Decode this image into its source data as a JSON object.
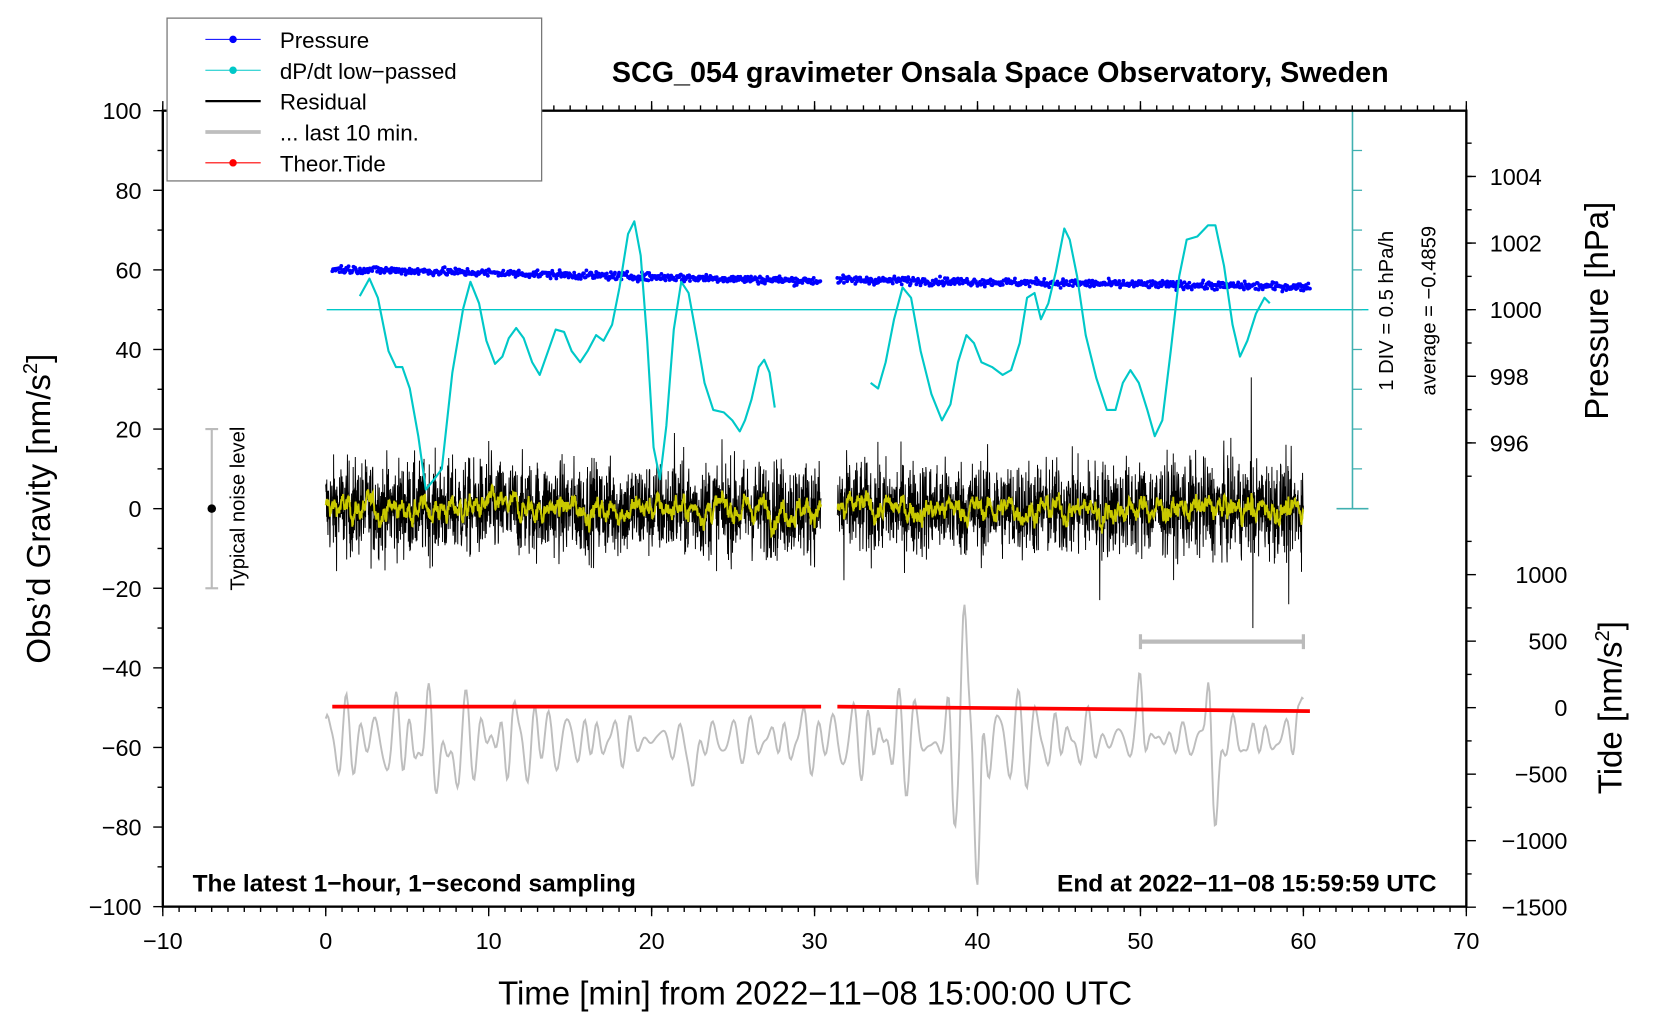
{
  "chart_data": {
    "type": "line",
    "title": "SCG_054 gravimeter Onsala Space Observatory, Sweden",
    "xlabel": "Time [min] from 2022−11−08 15:00:00 UTC",
    "ylabel": "Obs’d Gravity [nm/s",
    "ylabel_sup": "2",
    "ylabel_end": "]",
    "y2label": "Pressure [hPa]",
    "y3label": "Tide [nm/s",
    "y3label_sup": "2",
    "y3label_end": "]",
    "xlim": [
      -10,
      70
    ],
    "ylim": [
      -100,
      100
    ],
    "x_ticks": [
      "−10",
      "0",
      "10",
      "20",
      "30",
      "40",
      "50",
      "60",
      "70"
    ],
    "x_tick_values": [
      -10,
      0,
      10,
      20,
      30,
      40,
      50,
      60,
      70
    ],
    "y_ticks": [
      "100",
      "80",
      "60",
      "40",
      "20",
      "0",
      "−20",
      "−40",
      "−60",
      "−80",
      "−100"
    ],
    "y_tick_values": [
      100,
      80,
      60,
      40,
      20,
      0,
      -20,
      -40,
      -60,
      -80,
      -100
    ],
    "pressure_ticks": [
      "1004",
      "1002",
      "1000",
      "998",
      "996"
    ],
    "pressure_tick_values": [
      1004,
      1002,
      1000,
      998,
      996
    ],
    "tide_ticks": [
      "1000",
      "500",
      "0",
      "−500",
      "−1000",
      "−1500"
    ],
    "tide_tick_values": [
      1000,
      500,
      0,
      -500,
      -1000,
      -1500
    ],
    "legend": {
      "position": "top-left",
      "entries": [
        {
          "label": "Pressure",
          "color": "#0000ff",
          "marker": true
        },
        {
          "label": "dP/dt low−passed",
          "color": "#00c8c8",
          "marker": true
        },
        {
          "label": "Residual",
          "color": "#000000",
          "marker": false
        },
        {
          "label": "... last 10 min.",
          "color": "#bebebe",
          "marker": false
        },
        {
          "label": "Theor.Tide",
          "color": "#ff0000",
          "marker": true
        }
      ]
    },
    "annotations": {
      "bottom_left": "The latest 1−hour, 1−second sampling",
      "bottom_right": "End at 2022−11−08 15:59:59 UTC",
      "div_scale": "1 DIV = 0.5 hPa/h",
      "average": "average = −0.4859",
      "noise_level": "Typical noise level"
    },
    "colors": {
      "pressure": "#0000ff",
      "dpdt": "#00c8c8",
      "residual": "#000000",
      "smooth": "#c8c800",
      "last10": "#bebebe",
      "tide": "#ff0000",
      "scalebar": "#40b0b0"
    },
    "noise_level_range": [
      -20,
      20
    ],
    "last10_bar_minutes": [
      50,
      60
    ],
    "dpdt_div_hPa_per_h": 0.5,
    "dpdt_zero_pressure": 1000,
    "pressure_segments": [
      {
        "t": [
          0.4,
          30.4
        ],
        "p": [
          1001.22,
          1000.86
        ],
        "scatter": 0.12
      },
      {
        "t": [
          31.4,
          60.4
        ],
        "p": [
          1000.9,
          1000.68
        ],
        "scatter": 0.12
      }
    ],
    "tide_segments": [
      {
        "t": [
          0.4,
          30.4
        ],
        "v": [
          8,
          8
        ]
      },
      {
        "t": [
          31.4,
          60.4
        ],
        "v": [
          8,
          -26
        ]
      }
    ],
    "residual_segments": [
      {
        "t": [
          0.0,
          30.4
        ],
        "amplitude": 11
      },
      {
        "t": [
          31.4,
          60.0
        ],
        "amplitude": 11
      }
    ],
    "residual_spikes": [
      [
        56.8,
        33
      ],
      [
        56.9,
        -30
      ],
      [
        47.5,
        -23
      ],
      [
        59.1,
        -24
      ],
      [
        21.4,
        19
      ],
      [
        10.0,
        17
      ],
      [
        31.8,
        -18
      ]
    ],
    "last10_center": -58,
    "last10_amplitude": 11,
    "last10_events": [
      [
        39.2,
        30,
        0.25
      ],
      [
        40.0,
        -33,
        0.25
      ],
      [
        38.5,
        -15,
        0.2
      ],
      [
        54.6,
        -22,
        0.25
      ],
      [
        54.2,
        16,
        0.2
      ],
      [
        50.0,
        14,
        0.2
      ],
      [
        59.6,
        12,
        0.2
      ],
      [
        7.5,
        -12,
        0.3
      ],
      [
        22.5,
        -12,
        0.3
      ]
    ],
    "dpdt_series": [
      [
        [
          2.09,
          0.17
        ],
        [
          2.68,
          0.39
        ],
        [
          3.2,
          0.15
        ],
        [
          3.85,
          -0.52
        ],
        [
          4.31,
          -0.72
        ],
        [
          4.7,
          -0.72
        ],
        [
          5.16,
          -0.99
        ],
        [
          5.68,
          -1.59
        ],
        [
          6.14,
          -2.26
        ],
        [
          6.66,
          -2.13
        ],
        [
          7.12,
          -2.0
        ],
        [
          7.77,
          -0.79
        ],
        [
          8.43,
          0.01
        ],
        [
          8.88,
          0.35
        ],
        [
          9.41,
          0.08
        ],
        [
          9.86,
          -0.39
        ],
        [
          10.39,
          -0.68
        ],
        [
          10.84,
          -0.59
        ],
        [
          11.23,
          -0.36
        ],
        [
          11.69,
          -0.23
        ],
        [
          12.15,
          -0.36
        ],
        [
          12.67,
          -0.66
        ],
        [
          13.13,
          -0.82
        ],
        [
          13.65,
          -0.52
        ],
        [
          14.11,
          -0.25
        ],
        [
          14.63,
          -0.28
        ],
        [
          15.09,
          -0.52
        ],
        [
          15.61,
          -0.66
        ],
        [
          16.07,
          -0.52
        ],
        [
          16.59,
          -0.32
        ],
        [
          17.05,
          -0.39
        ],
        [
          17.57,
          -0.19
        ],
        [
          18.03,
          0.28
        ],
        [
          18.55,
          0.95
        ],
        [
          18.94,
          1.11
        ],
        [
          19.33,
          0.68
        ],
        [
          19.73,
          -0.39
        ],
        [
          20.12,
          -1.73
        ],
        [
          20.51,
          -2.13
        ],
        [
          20.9,
          -1.46
        ],
        [
          21.36,
          -0.25
        ],
        [
          21.82,
          0.35
        ],
        [
          22.27,
          0.21
        ],
        [
          22.8,
          -0.39
        ],
        [
          23.25,
          -0.92
        ],
        [
          23.78,
          -1.26
        ],
        [
          24.43,
          -1.29
        ],
        [
          24.95,
          -1.39
        ],
        [
          25.41,
          -1.53
        ],
        [
          25.73,
          -1.39
        ],
        [
          26.13,
          -1.13
        ],
        [
          26.58,
          -0.72
        ],
        [
          26.91,
          -0.63
        ],
        [
          27.24,
          -0.79
        ],
        [
          27.56,
          -1.23
        ]
      ],
      [
        [
          33.44,
          -0.92
        ],
        [
          33.9,
          -0.99
        ],
        [
          34.36,
          -0.66
        ],
        [
          34.88,
          -0.12
        ],
        [
          35.4,
          0.28
        ],
        [
          35.92,
          0.15
        ],
        [
          36.51,
          -0.52
        ],
        [
          37.17,
          -1.06
        ],
        [
          37.82,
          -1.39
        ],
        [
          38.34,
          -1.19
        ],
        [
          38.8,
          -0.66
        ],
        [
          39.32,
          -0.32
        ],
        [
          39.78,
          -0.42
        ],
        [
          40.24,
          -0.66
        ],
        [
          40.89,
          -0.72
        ],
        [
          41.54,
          -0.82
        ],
        [
          42.06,
          -0.76
        ],
        [
          42.59,
          -0.42
        ],
        [
          43.04,
          0.15
        ],
        [
          43.5,
          0.21
        ],
        [
          43.89,
          -0.12
        ],
        [
          44.35,
          0.08
        ],
        [
          44.81,
          0.48
        ],
        [
          45.33,
          1.02
        ],
        [
          45.66,
          0.88
        ],
        [
          46.11,
          0.42
        ],
        [
          46.64,
          -0.32
        ],
        [
          47.29,
          -0.86
        ],
        [
          47.94,
          -1.26
        ],
        [
          48.47,
          -1.26
        ],
        [
          48.92,
          -0.92
        ],
        [
          49.38,
          -0.76
        ],
        [
          49.9,
          -0.92
        ],
        [
          50.42,
          -1.26
        ],
        [
          50.88,
          -1.59
        ],
        [
          51.34,
          -1.39
        ],
        [
          51.86,
          -0.52
        ],
        [
          52.38,
          0.42
        ],
        [
          52.84,
          0.88
        ],
        [
          53.49,
          0.92
        ],
        [
          54.15,
          1.06
        ],
        [
          54.6,
          1.06
        ],
        [
          55.13,
          0.55
        ],
        [
          55.65,
          -0.19
        ],
        [
          56.11,
          -0.59
        ],
        [
          56.56,
          -0.39
        ],
        [
          57.09,
          -0.05
        ],
        [
          57.61,
          0.15
        ],
        [
          57.94,
          0.08
        ]
      ]
    ]
  }
}
